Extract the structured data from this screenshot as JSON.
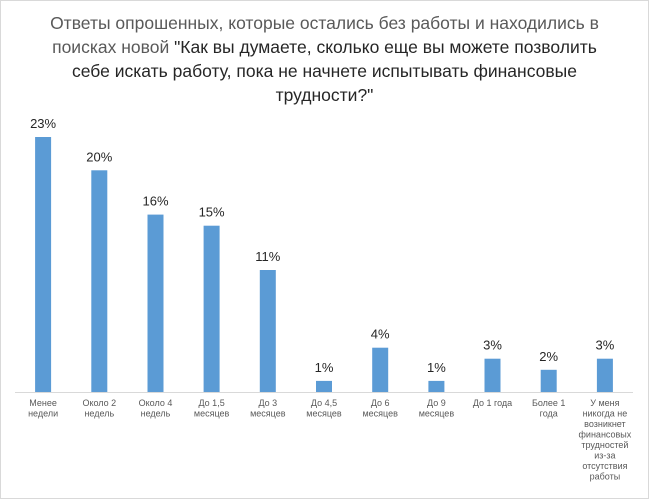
{
  "chart_data": {
    "type": "bar",
    "title_part1": "Ответы опрошенных, которые остались без работы и находились в поисках новой ",
    "title_part2": "\"Как вы думаете, сколько еще вы можете позволить себе искать работу, пока не начнете испытывать финансовые трудности?\"",
    "categories": [
      "Менее недели",
      "Около 2 недель",
      "Около 4 недель",
      "До 1,5 месяцев",
      "До 3 месяцев",
      "До 4,5 месяцев",
      "До 6 месяцев",
      "До 9 месяцев",
      "До 1 года",
      "Более 1 года",
      "У меня никогда не возникнет финансовых трудностей из-за отсутствия работы"
    ],
    "values": [
      23,
      20,
      16,
      15,
      11,
      1,
      4,
      1,
      3,
      2,
      3
    ],
    "value_labels": [
      "23%",
      "20%",
      "16%",
      "15%",
      "11%",
      "1%",
      "4%",
      "1%",
      "3%",
      "2%",
      "3%"
    ],
    "ylim": [
      0,
      23
    ],
    "grid": false,
    "legend": "none",
    "bar_color": "#5b9bd5"
  }
}
